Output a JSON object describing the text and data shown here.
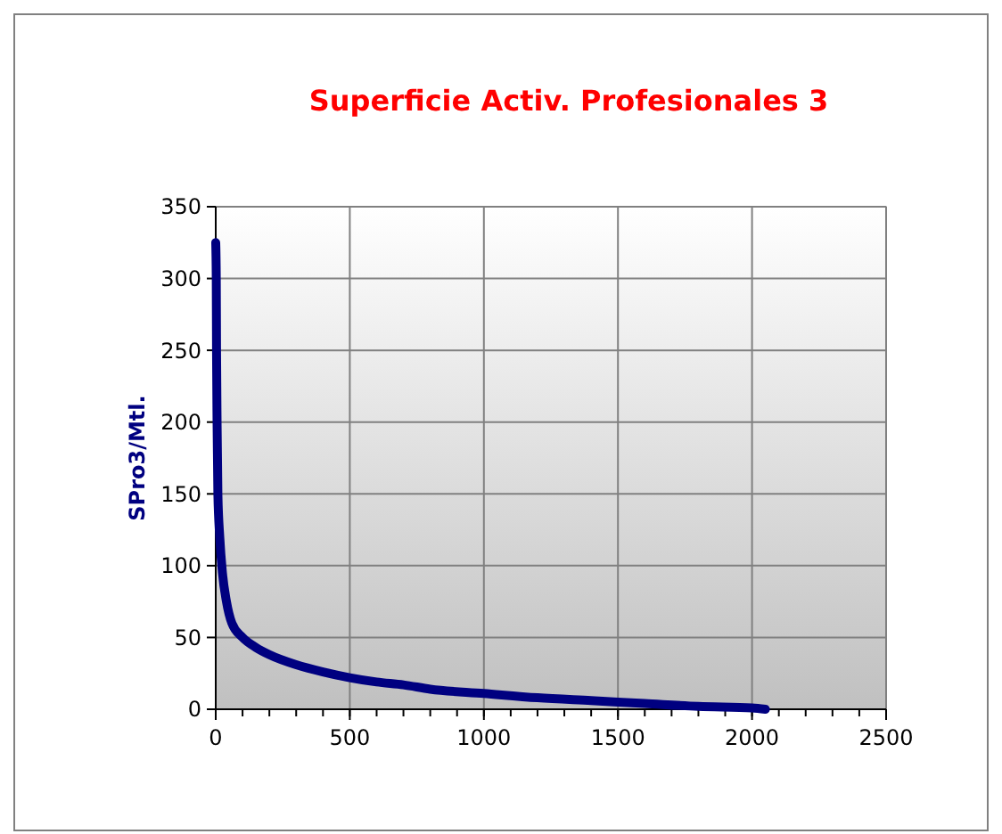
{
  "chart_data": {
    "type": "line",
    "title": "Superficie Activ. Profesionales 3",
    "ylabel": "SPro3/Mtl.",
    "xlim": [
      0,
      2500
    ],
    "xticks": [
      0,
      500,
      1000,
      1500,
      2000,
      2500
    ],
    "ylim": [
      0,
      350
    ],
    "yticks": [
      0,
      50,
      100,
      150,
      200,
      250,
      300,
      350
    ],
    "grid": true,
    "marker": "none",
    "line_style": "solid",
    "series": [
      {
        "color": "#000080",
        "x": [
          0,
          2,
          3,
          5,
          8,
          15,
          25,
          40,
          60,
          100,
          150,
          200,
          300,
          400,
          500,
          600,
          700,
          800,
          1000,
          1200,
          1400,
          1600,
          1800,
          2000,
          2050
        ],
        "values": [
          325,
          300,
          250,
          200,
          150,
          120,
          95,
          75,
          60,
          50,
          43,
          38,
          31,
          26,
          22,
          19,
          17,
          14,
          11,
          8,
          6,
          4,
          2,
          1,
          0
        ]
      }
    ]
  }
}
